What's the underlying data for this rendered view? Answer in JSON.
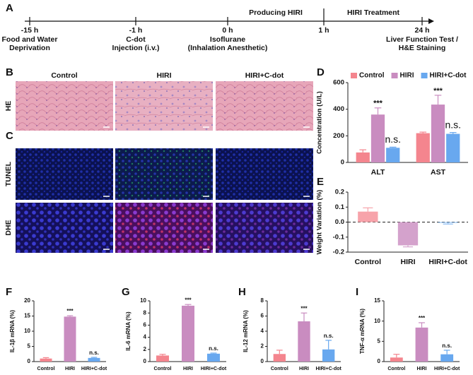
{
  "panel_labels": [
    "A",
    "B",
    "C",
    "D",
    "E",
    "F",
    "G",
    "H",
    "I"
  ],
  "timeline": {
    "phases": [
      "Producing HIRI",
      "HIRI Treatment"
    ],
    "points": [
      {
        "time": "-15 h",
        "label": [
          "Food and Water",
          "Deprivation"
        ]
      },
      {
        "time": "-1 h",
        "label": [
          "C-dot",
          "Injection (i.v.)"
        ]
      },
      {
        "time": "0 h",
        "label": [
          "Isoflurane",
          "(Inhalation Anesthetic)"
        ]
      },
      {
        "time": "1 h"
      },
      {
        "time": "24 h",
        "label": [
          "Liver Function Test /",
          "H&E Staining"
        ]
      }
    ]
  },
  "image_panel": {
    "columns": [
      "Control",
      "HIRI",
      "HIRI+C-dot"
    ],
    "rows": [
      "HE",
      "TUNEL",
      "DHE"
    ]
  },
  "chart_data": [
    {
      "type": "bar",
      "y_label": "Concentration (U/L)",
      "categories": [
        "ALT",
        "AST"
      ],
      "series": [
        {
          "name": "Control",
          "color": "#f4858e",
          "values": [
            75,
            220
          ],
          "errors": [
            20,
            8
          ]
        },
        {
          "name": "HIRI",
          "color": "#c98cc0",
          "values": [
            360,
            435
          ],
          "errors": [
            50,
            70
          ],
          "marks": [
            "***",
            "***"
          ]
        },
        {
          "name": "HIRI+C-dot",
          "color": "#68a8ef",
          "values": [
            110,
            215
          ],
          "errors": [
            5,
            10
          ],
          "marks": [
            "n.s.",
            "n.s."
          ]
        }
      ],
      "ylim": [
        0,
        600
      ],
      "yticks": [
        0,
        200,
        400,
        600
      ],
      "legend": "top"
    },
    {
      "type": "bar",
      "y_label": "Weight Variation (%)",
      "categories": [
        "Control",
        "HIRI",
        "HIRI+C-dot"
      ],
      "values": [
        0.07,
        -0.155,
        -0.005
      ],
      "errors": [
        0.025,
        0.01,
        0.008
      ],
      "colors": [
        "#f7a3aa",
        "#d4a2cc",
        "#8bbcf2"
      ],
      "ylim": [
        -0.2,
        0.2
      ],
      "yticks": [
        -0.2,
        -0.1,
        {
          "value": 0,
          "label": "0.0"
        },
        0.1,
        0.2
      ]
    },
    {
      "type": "bar",
      "y_label": "IL-1β mRNA (%)",
      "categories": [
        "Control",
        "HIRI",
        "HIRI+C-dot"
      ],
      "values": [
        1,
        14.8,
        1.2
      ],
      "errors": [
        0.3,
        0.3,
        0.2
      ],
      "marks": [
        null,
        "***",
        "n.s."
      ],
      "colors": [
        "#f4858e",
        "#c98cc0",
        "#68a8ef"
      ],
      "ylim": [
        0,
        20
      ],
      "yticks": [
        0,
        5,
        10,
        15,
        20
      ]
    },
    {
      "type": "bar",
      "y_label": "IL-6 mRNA (%)",
      "categories": [
        "Control",
        "HIRI",
        "HIRI+C-dot"
      ],
      "values": [
        1,
        9.2,
        1.3
      ],
      "errors": [
        0.2,
        0.2,
        0.1
      ],
      "marks": [
        null,
        "***",
        "n.s."
      ],
      "colors": [
        "#f4858e",
        "#c98cc0",
        "#68a8ef"
      ],
      "ylim": [
        0,
        10
      ],
      "yticks": [
        0,
        2,
        4,
        6,
        8,
        10
      ]
    },
    {
      "type": "bar",
      "y_label": "IL-12 mRNA (%)",
      "categories": [
        "Control",
        "HIRI",
        "HIRI+C-dot"
      ],
      "values": [
        1,
        5.3,
        1.6
      ],
      "errors": [
        0.5,
        1.1,
        1.2
      ],
      "marks": [
        null,
        "***",
        "n.s."
      ],
      "colors": [
        "#f4858e",
        "#c98cc0",
        "#68a8ef"
      ],
      "ylim": [
        0,
        8
      ],
      "yticks": [
        0,
        2,
        4,
        6,
        8
      ]
    },
    {
      "type": "bar",
      "y_label": "TNF-α mRNA (%)",
      "categories": [
        "Control",
        "HIRI",
        "HIRI+C-dot"
      ],
      "values": [
        1,
        8.4,
        1.8
      ],
      "errors": [
        0.8,
        1.2,
        1.0
      ],
      "marks": [
        null,
        "***",
        "n.s."
      ],
      "colors": [
        "#f4858e",
        "#c98cc0",
        "#68a8ef"
      ],
      "ylim": [
        0,
        15
      ],
      "yticks": [
        0,
        5,
        10,
        15
      ]
    }
  ]
}
